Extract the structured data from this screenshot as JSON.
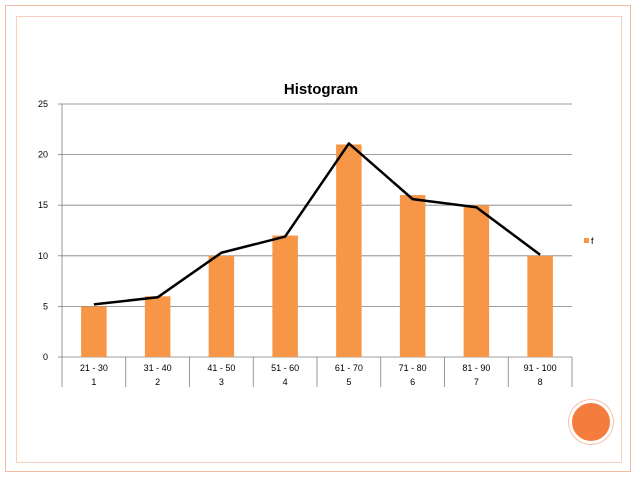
{
  "colors": {
    "bar": "#f79646",
    "line": "#000000",
    "grid": "#7f7f7f",
    "accent_circle": "#f47c3c",
    "frame": "#f3b9a2"
  },
  "chart_data": {
    "type": "bar",
    "title": "Histogram",
    "xlabel": "",
    "ylabel": "",
    "categories": [
      "21 - 30",
      "31 - 40",
      "41 - 50",
      "51 - 60",
      "61 - 70",
      "71 - 80",
      "81 - 90",
      "91 - 100"
    ],
    "category_index": [
      "1",
      "2",
      "3",
      "4",
      "5",
      "6",
      "7",
      "8"
    ],
    "series": [
      {
        "name": "f",
        "values": [
          5,
          6,
          10,
          12,
          21,
          16,
          15,
          10
        ]
      }
    ],
    "polygon_line": [
      5.2,
      5.9,
      10.3,
      11.9,
      21.1,
      15.6,
      14.8,
      10.1
    ],
    "ylim": [
      0,
      25
    ],
    "yticks": [
      0,
      5,
      10,
      15,
      20,
      25
    ],
    "grid": true,
    "legend_position": "right"
  }
}
